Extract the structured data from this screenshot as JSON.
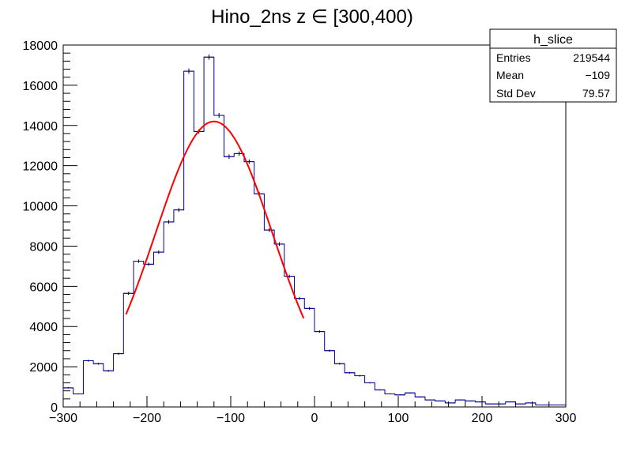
{
  "chart_data": {
    "type": "histogram",
    "title": "Hino_2ns z  ∈ [300,400)",
    "xlim": [
      -300,
      300
    ],
    "ylim": [
      0,
      18000
    ],
    "x_ticks": [
      -300,
      -200,
      -100,
      0,
      100,
      200,
      300
    ],
    "x_tick_labels": [
      "−300",
      "−200",
      "−100",
      "0",
      "100",
      "200",
      "300"
    ],
    "y_ticks": [
      0,
      2000,
      4000,
      6000,
      8000,
      10000,
      12000,
      14000,
      16000,
      18000
    ],
    "y_tick_labels": [
      "0",
      "2000",
      "4000",
      "6000",
      "8000",
      "10000",
      "12000",
      "14000",
      "16000",
      "18000"
    ],
    "bin_width": 12,
    "bin_edges_start": -300,
    "values": [
      950,
      650,
      2300,
      2150,
      1800,
      2650,
      5650,
      7250,
      7100,
      7700,
      9200,
      9800,
      16700,
      13700,
      17400,
      14500,
      12450,
      12600,
      12200,
      10600,
      8800,
      8100,
      6500,
      5400,
      4900,
      3750,
      2800,
      2150,
      1700,
      1550,
      1200,
      850,
      650,
      600,
      700,
      500,
      350,
      300,
      200,
      350,
      300,
      250,
      150,
      150,
      250,
      150,
      200,
      100,
      100,
      100
    ],
    "line_color": "#000099",
    "fit": {
      "type": "gaussian",
      "color": "#ff0000",
      "amplitude": 14200,
      "mean": -120,
      "sigma": 70,
      "range": [
        -225,
        -13
      ]
    },
    "stats_box": {
      "name": "h_slice",
      "rows": [
        {
          "label": "Entries",
          "value": "219544"
        },
        {
          "label": "Mean",
          "value": "−109"
        },
        {
          "label": "Std Dev",
          "value": "79.57"
        }
      ]
    }
  }
}
